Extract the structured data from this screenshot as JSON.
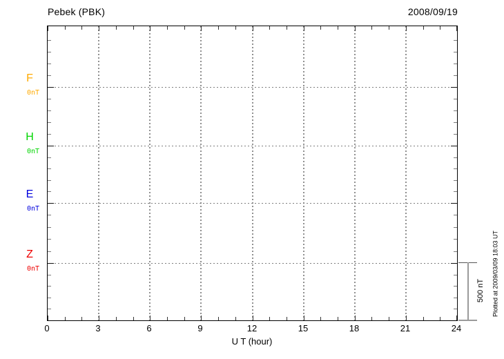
{
  "title": "Pebek (PBK)",
  "date": "2008/09/19",
  "xlabel": "U T (hour)",
  "x_tick_labels": [
    "0",
    "3",
    "6",
    "9",
    "12",
    "15",
    "18",
    "21",
    "24"
  ],
  "channels": [
    {
      "label": "F",
      "value_label": "0nT",
      "color": "#ffaa00"
    },
    {
      "label": "H",
      "value_label": "0nT",
      "color": "#00d500"
    },
    {
      "label": "E",
      "value_label": "0nT",
      "color": "#0000dd"
    },
    {
      "label": "Z",
      "value_label": "0nT",
      "color": "#ee0000"
    }
  ],
  "scale_bar": {
    "label": "500 nT"
  },
  "plotted_at": "Plotted at 2009/03/09 18:03 UT",
  "chart_data": {
    "type": "line",
    "title": "Pebek (PBK)",
    "subtitle": "2008/09/19",
    "xlabel": "U T (hour)",
    "x_range_hours": [
      0,
      24
    ],
    "x_major_tick_interval_hours": 3,
    "x_minor_tick_interval_hours": 1,
    "grid": true,
    "legend_position": "left",
    "scale_bar_nT": 500,
    "series": [
      {
        "name": "F",
        "baseline_nT": 0,
        "color": "#ffaa00",
        "values": []
      },
      {
        "name": "H",
        "baseline_nT": 0,
        "color": "#00d500",
        "values": []
      },
      {
        "name": "E",
        "baseline_nT": 0,
        "color": "#0000dd",
        "values": []
      },
      {
        "name": "Z",
        "baseline_nT": 0,
        "color": "#ee0000",
        "values": []
      }
    ],
    "note": "Empty magnetogram: only 0 nT baselines shown, no data traces plotted"
  }
}
